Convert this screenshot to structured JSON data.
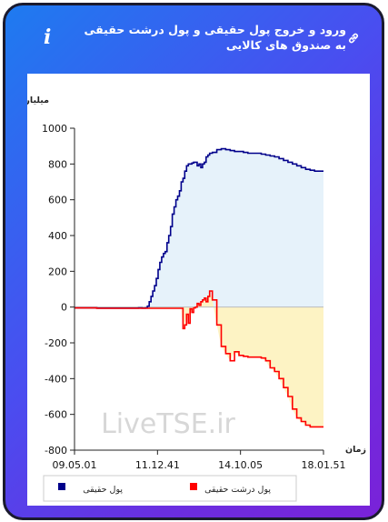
{
  "header": {
    "title": "ورود و خروج پول حقیقی و پول درشت حقیقی به صندوق های کالایی"
  },
  "watermark": "LiveTSE.ir",
  "colors": {
    "series1": "#00008b",
    "series1_fill": "#e6f2fa",
    "series2": "#ff0000",
    "series2_fill": "#fdf3c4"
  },
  "chart_data": {
    "type": "area",
    "ylabel": "میلیارد تومان",
    "xlabel": "زمان",
    "ylim": [
      -800,
      1000
    ],
    "yticks": [
      -800,
      -600,
      -400,
      -200,
      0,
      200,
      400,
      600,
      800,
      1000
    ],
    "xtick_labels": [
      "09.05.01",
      "11.12.41",
      "14.10.05",
      "18.01.51"
    ],
    "grid": false,
    "legend_position": "bottom",
    "series": [
      {
        "name": "پول حقیقی",
        "x": [
          0,
          5,
          10,
          15,
          20,
          25,
          30,
          35,
          40,
          45,
          50,
          55,
          60,
          65,
          70,
          72,
          74,
          76,
          78,
          80,
          82,
          84,
          86,
          88,
          90,
          92,
          94,
          96,
          98,
          100,
          102,
          104,
          106,
          108,
          110,
          112,
          114,
          116,
          118,
          120,
          122,
          124,
          126,
          128,
          130,
          132,
          134,
          136,
          138,
          140,
          142,
          144,
          146,
          148,
          150,
          152,
          155,
          160,
          165,
          170,
          175,
          180,
          185,
          190,
          195,
          200,
          205,
          210,
          215,
          220,
          225,
          230,
          235,
          240,
          245,
          250,
          255,
          260,
          265,
          270,
          275,
          280
        ],
        "values": [
          -5,
          -5,
          -5,
          -5,
          -5,
          -6,
          -6,
          -6,
          -6,
          -6,
          -6,
          -6,
          -6,
          -6,
          -6,
          -5,
          -5,
          -6,
          -6,
          -5,
          5,
          30,
          60,
          90,
          120,
          160,
          210,
          250,
          280,
          300,
          310,
          360,
          400,
          450,
          520,
          560,
          600,
          620,
          650,
          700,
          720,
          760,
          790,
          800,
          800,
          805,
          810,
          810,
          790,
          800,
          780,
          800,
          810,
          840,
          850,
          860,
          865,
          880,
          885,
          880,
          875,
          870,
          870,
          865,
          860,
          860,
          860,
          855,
          850,
          845,
          840,
          830,
          820,
          810,
          800,
          790,
          780,
          770,
          765,
          760,
          760,
          760
        ]
      },
      {
        "name": "پول درشت حقیقی",
        "x": [
          0,
          5,
          10,
          15,
          20,
          25,
          30,
          35,
          40,
          45,
          50,
          55,
          60,
          65,
          70,
          72,
          74,
          76,
          78,
          80,
          82,
          84,
          86,
          88,
          90,
          92,
          94,
          96,
          98,
          100,
          102,
          104,
          106,
          108,
          110,
          112,
          114,
          116,
          118,
          120,
          122,
          124,
          126,
          128,
          130,
          132,
          134,
          136,
          138,
          140,
          142,
          144,
          146,
          148,
          150,
          152,
          155,
          160,
          165,
          170,
          175,
          180,
          185,
          190,
          195,
          200,
          205,
          210,
          215,
          220,
          225,
          230,
          235,
          240,
          245,
          250,
          255,
          260,
          265,
          270,
          275,
          280
        ],
        "values": [
          -5,
          -5,
          -5,
          -5,
          -5,
          -7,
          -7,
          -7,
          -7,
          -7,
          -7,
          -7,
          -7,
          -7,
          -7,
          -7,
          -7,
          -7,
          -7,
          -7,
          -7,
          -7,
          -7,
          -7,
          -7,
          -7,
          -7,
          -7,
          -7,
          -7,
          -7,
          -7,
          -7,
          -7,
          -7,
          -7,
          -7,
          -7,
          -7,
          -7,
          -120,
          -100,
          -40,
          -90,
          -10,
          -30,
          -5,
          0,
          20,
          10,
          30,
          40,
          50,
          30,
          60,
          90,
          40,
          -100,
          -220,
          -260,
          -300,
          -250,
          -270,
          -275,
          -280,
          -280,
          -280,
          -285,
          -300,
          -340,
          -360,
          -400,
          -450,
          -500,
          -570,
          -620,
          -640,
          -660,
          -670,
          -670,
          -670,
          -670
        ]
      }
    ]
  }
}
